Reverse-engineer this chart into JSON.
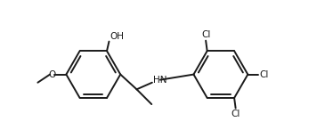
{
  "bg_color": "#ffffff",
  "line_color": "#1a1a1a",
  "linewidth": 1.4,
  "figsize": [
    3.74,
    1.55
  ],
  "dpi": 100,
  "xlim": [
    -0.5,
    9.5
  ],
  "ylim": [
    -0.5,
    4.5
  ]
}
